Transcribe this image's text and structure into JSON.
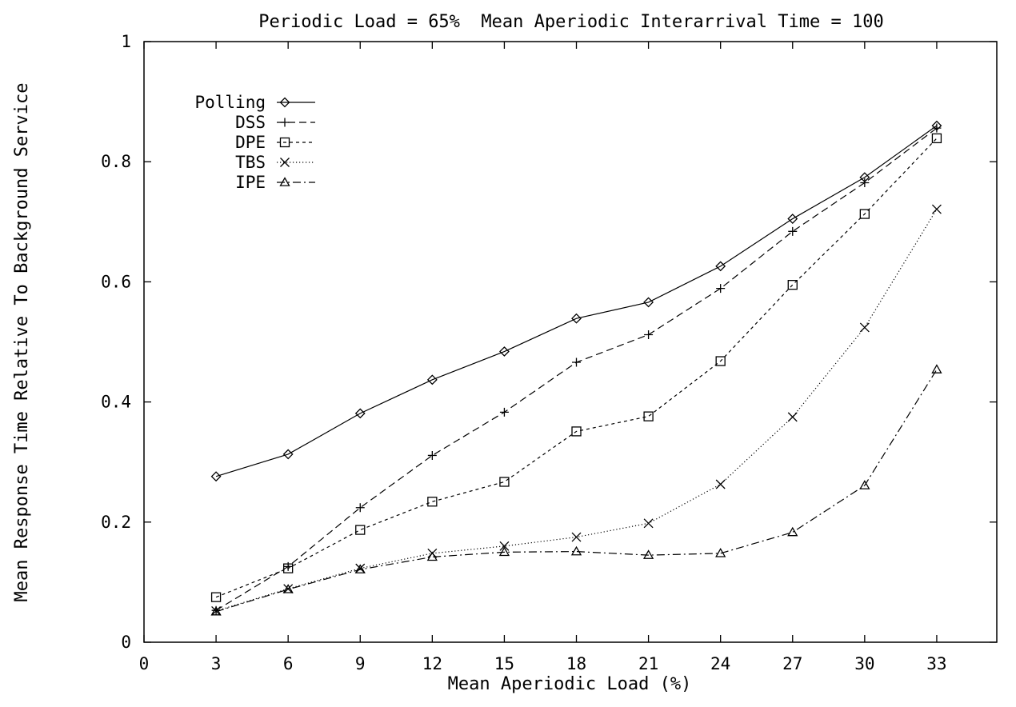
{
  "chart_data": {
    "type": "line",
    "title": "Periodic Load = 65%  Mean Aperiodic Interarrival Time = 100",
    "xlabel": "Mean Aperiodic Load (%)",
    "ylabel": "Mean Response Time Relative To Background Service",
    "xlim": [
      0,
      35.5
    ],
    "ylim": [
      0,
      1
    ],
    "xticks": [
      0,
      3,
      6,
      9,
      12,
      15,
      18,
      21,
      24,
      27,
      30,
      33
    ],
    "yticks": [
      0,
      0.2,
      0.4,
      0.6,
      0.8,
      1
    ],
    "ytick_labels": [
      "0",
      "0.2",
      "0.4",
      "0.6",
      "0.8",
      "1"
    ],
    "grid": false,
    "legend_position": "top-left",
    "x": [
      3,
      6,
      9,
      12,
      15,
      18,
      21,
      24,
      27,
      30,
      33
    ],
    "series": [
      {
        "name": "Polling",
        "marker": "diamond",
        "dash": "solid",
        "values": [
          0.276,
          0.313,
          0.381,
          0.437,
          0.484,
          0.539,
          0.566,
          0.626,
          0.705,
          0.774,
          0.86
        ]
      },
      {
        "name": "DSS",
        "marker": "plus",
        "dash": "dashed",
        "values": [
          0.053,
          0.126,
          0.224,
          0.311,
          0.383,
          0.466,
          0.512,
          0.589,
          0.684,
          0.765,
          0.856
        ]
      },
      {
        "name": "DPE",
        "marker": "square",
        "dash": "short-dashed",
        "values": [
          0.075,
          0.123,
          0.187,
          0.234,
          0.267,
          0.351,
          0.376,
          0.468,
          0.595,
          0.713,
          0.839
        ]
      },
      {
        "name": "TBS",
        "marker": "cross",
        "dash": "dotted",
        "values": [
          0.052,
          0.089,
          0.123,
          0.148,
          0.16,
          0.175,
          0.198,
          0.263,
          0.375,
          0.524,
          0.721
        ]
      },
      {
        "name": "IPE",
        "marker": "triangle",
        "dash": "dash-dot",
        "values": [
          0.051,
          0.088,
          0.121,
          0.142,
          0.15,
          0.151,
          0.145,
          0.148,
          0.183,
          0.261,
          0.454
        ]
      }
    ]
  }
}
